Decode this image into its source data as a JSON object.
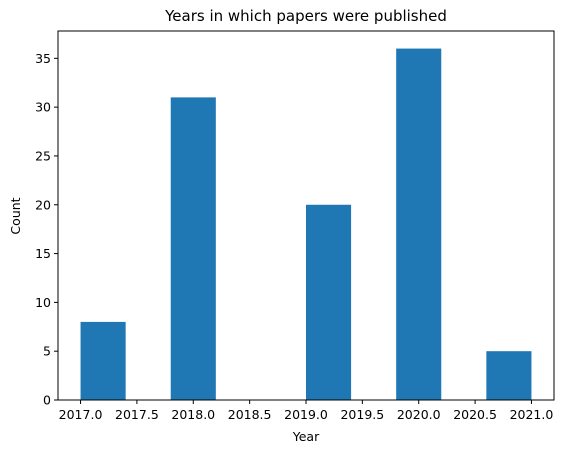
{
  "chart_data": {
    "type": "bar",
    "title": "Years in which papers were published",
    "xlabel": "Year",
    "ylabel": "Count",
    "bin_edges": [
      2017.0,
      2017.4,
      2017.8,
      2018.2,
      2018.6,
      2019.0,
      2019.4,
      2019.8,
      2020.2,
      2020.6,
      2021.0
    ],
    "values": [
      8,
      0,
      31,
      0,
      0,
      20,
      0,
      36,
      0,
      5
    ],
    "xlim": [
      2016.8,
      2021.2
    ],
    "ylim": [
      0,
      37.8
    ],
    "x_ticks": [
      2017.0,
      2017.5,
      2018.0,
      2018.5,
      2019.0,
      2019.5,
      2020.0,
      2020.5,
      2021.0
    ],
    "x_tick_labels": [
      "2017.0",
      "2017.5",
      "2018.0",
      "2018.5",
      "2019.0",
      "2019.5",
      "2020.0",
      "2020.5",
      "2021.0"
    ],
    "y_ticks": [
      0,
      5,
      10,
      15,
      20,
      25,
      30,
      35
    ],
    "y_tick_labels": [
      "0",
      "5",
      "10",
      "15",
      "20",
      "25",
      "30",
      "35"
    ],
    "bar_color": "#1f77b4",
    "grid": false,
    "legend": "none"
  }
}
